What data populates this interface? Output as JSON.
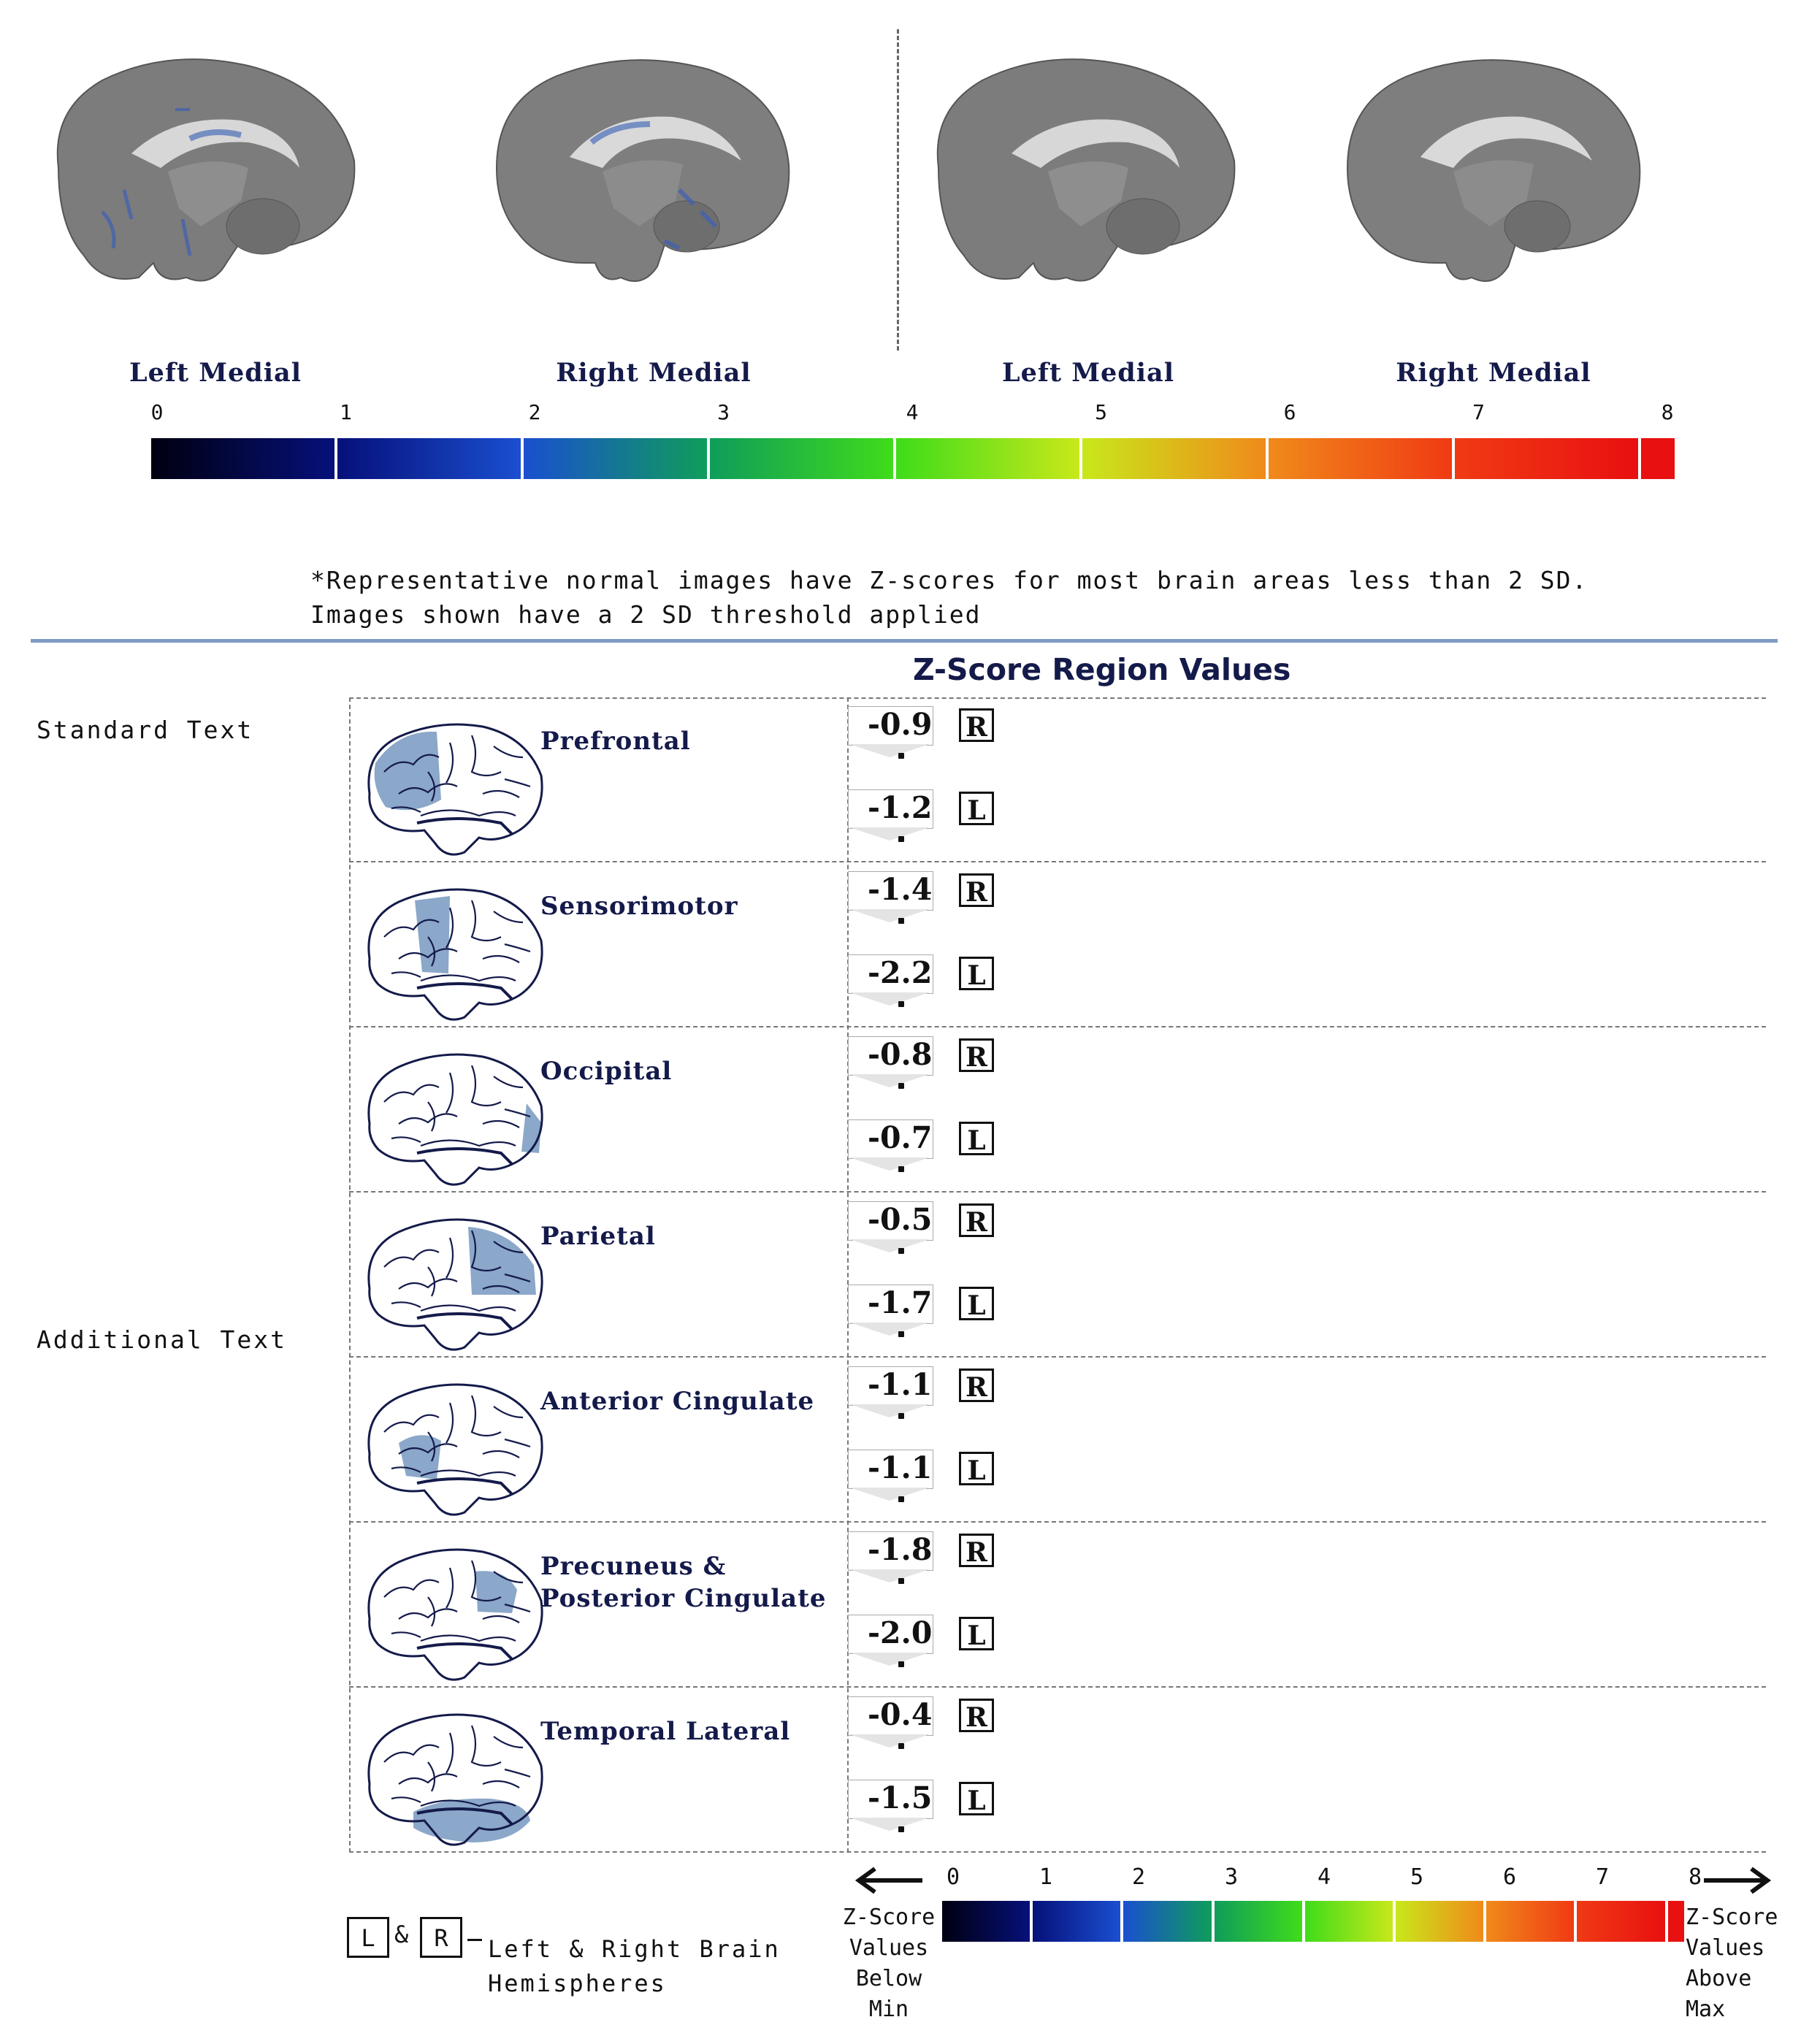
{
  "top_labels": [
    "Left Medial",
    "Right Medial",
    "Left Medial",
    "Right Medial"
  ],
  "top_scale": {
    "ticks": [
      "0",
      "1",
      "2",
      "3",
      "4",
      "5",
      "6",
      "7",
      "8"
    ]
  },
  "note": {
    "line1": "*Representative normal images have Z-scores for most brain areas less than 2 SD.",
    "line2": "Images shown have a 2 SD threshold applied"
  },
  "side_labels": {
    "standard": "Standard Text",
    "additional": "Additional Text"
  },
  "section_title": "Z-Score Region Values",
  "regions": [
    {
      "name": [
        "Prefrontal"
      ],
      "right": "-0.9",
      "left": "-1.2"
    },
    {
      "name": [
        "Sensorimotor"
      ],
      "right": "-1.4",
      "left": "-2.2"
    },
    {
      "name": [
        "Occipital"
      ],
      "right": "-0.8",
      "left": "-0.7"
    },
    {
      "name": [
        "Parietal"
      ],
      "right": "-0.5",
      "left": "-1.7"
    },
    {
      "name": [
        "Anterior Cingulate"
      ],
      "right": "-1.1",
      "left": "-1.1"
    },
    {
      "name": [
        "Precuneus &",
        "Posterior Cingulate"
      ],
      "right": "-1.8",
      "left": "-2.0"
    },
    {
      "name": [
        "Temporal Lateral"
      ],
      "right": "-0.4",
      "left": "-1.5"
    }
  ],
  "hemi_labels": {
    "right": "R",
    "left": "L"
  },
  "legend": {
    "left_box": "L",
    "amp": "&",
    "right_box": "R",
    "text_line1": "Left & Right Brain",
    "text_line2": "Hemispheres"
  },
  "bottom_scale": {
    "ticks": [
      "0",
      "1",
      "2",
      "3",
      "4",
      "5",
      "6",
      "7",
      "8"
    ],
    "below_caption": [
      "Z-Score",
      "Values",
      "Below",
      "Min"
    ],
    "above_caption": [
      "Z-Score",
      "Values",
      "Above",
      "Max"
    ]
  },
  "colors": {
    "label_navy": "#141a4a",
    "highlight_blue": "#8ba7c9",
    "rule_blue": "#7f9bc5",
    "scale": [
      "#000010",
      "#06107a",
      "#1a4fd0",
      "#0f9d5a",
      "#3fdc1a",
      "#c8e81a",
      "#f08a1a",
      "#f03a14",
      "#e81010"
    ]
  }
}
